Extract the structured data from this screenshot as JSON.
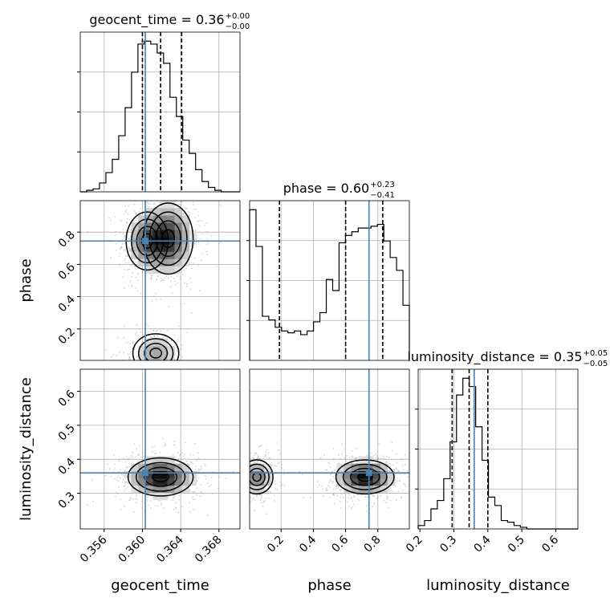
{
  "chart_data": {
    "type": "corner",
    "parameters": [
      "geocent_time",
      "phase",
      "luminosity_distance"
    ],
    "truths": {
      "geocent_time": 0.3603,
      "phase": 0.745,
      "luminosity_distance": 0.36
    },
    "titles": [
      {
        "param": "geocent_time",
        "text": "geocent_time = 0.36",
        "sup": "+0.00",
        "sub": "−0.00"
      },
      {
        "param": "phase",
        "text": "phase = 0.60",
        "sup": "+0.23",
        "sub": "−0.41"
      },
      {
        "param": "luminosity_distance",
        "text": "luminosity_distance = 0.35",
        "sup": "+0.05",
        "sub": "−0.05"
      }
    ],
    "ranges": {
      "geocent_time": [
        0.3535,
        0.3702
      ],
      "phase": [
        0.005,
        0.995
      ],
      "luminosity_distance": [
        0.195,
        0.665
      ]
    },
    "ticks": {
      "geocent_time": {
        "values": [
          0.356,
          0.36,
          0.364,
          0.368
        ],
        "labels": [
          "0.356",
          "0.360",
          "0.364",
          "0.368"
        ]
      },
      "phase_y": {
        "values": [
          0.2,
          0.4,
          0.6,
          0.8
        ],
        "labels": [
          "0.2",
          "0.4",
          "0.6",
          "0.8"
        ]
      },
      "phase_x": {
        "values": [
          0.2,
          0.4,
          0.6,
          0.8
        ],
        "labels": [
          "0.2",
          "0.4",
          "0.6",
          "0.8"
        ]
      },
      "luminosity_distance_y": {
        "values": [
          0.3,
          0.4,
          0.5,
          0.6
        ],
        "labels": [
          "0.3",
          "0.4",
          "0.5",
          "0.6"
        ]
      },
      "luminosity_distance_x": {
        "values": [
          0.2,
          0.3,
          0.4,
          0.5,
          0.6
        ],
        "labels": [
          "0.2",
          "0.3",
          "0.4",
          "0.5",
          "0.6"
        ]
      }
    },
    "quantiles": {
      "geocent_time": [
        0.36,
        0.3619,
        0.3641
      ],
      "phase": [
        0.19,
        0.6,
        0.83
      ],
      "luminosity_distance": [
        0.295,
        0.345,
        0.4
      ]
    },
    "histograms": {
      "geocent_time": {
        "edges": [
          0.3535,
          0.35417,
          0.35484,
          0.35551,
          0.35618,
          0.35685,
          0.35752,
          0.35819,
          0.35886,
          0.35953,
          0.3602,
          0.36087,
          0.36154,
          0.36221,
          0.36288,
          0.36355,
          0.36422,
          0.36489,
          0.36556,
          0.36623,
          0.3669,
          0.36757,
          0.36824,
          0.36891,
          0.36958,
          0.3702
        ],
        "counts": [
          0,
          1,
          2,
          6,
          13,
          22,
          38,
          57,
          81,
          100,
          102,
          100,
          94,
          87,
          64,
          51,
          35,
          26,
          15,
          7,
          3,
          1,
          0,
          0,
          0
        ]
      },
      "phase": {
        "edges": [
          0.005,
          0.0446,
          0.0842,
          0.1238,
          0.1634,
          0.203,
          0.2426,
          0.2822,
          0.3218,
          0.3614,
          0.401,
          0.4406,
          0.4802,
          0.5198,
          0.5594,
          0.599,
          0.6386,
          0.6782,
          0.7178,
          0.7574,
          0.797,
          0.8366,
          0.8762,
          0.9158,
          0.9554,
          0.995
        ],
        "counts": [
          82,
          62,
          24,
          22,
          18,
          16,
          15,
          16,
          14,
          16,
          21,
          26,
          44,
          38,
          64,
          68,
          70,
          72,
          72,
          73,
          74,
          65,
          56,
          49,
          30
        ]
      },
      "luminosity_distance": {
        "edges": [
          0.195,
          0.2138,
          0.2326,
          0.2514,
          0.2702,
          0.289,
          0.3078,
          0.3266,
          0.3454,
          0.3642,
          0.383,
          0.4018,
          0.4206,
          0.4394,
          0.4582,
          0.477,
          0.4958,
          0.5146,
          0.5334,
          0.5522,
          0.571,
          0.5898,
          0.6086,
          0.6274,
          0.6462,
          0.665
        ],
        "counts": [
          2,
          5,
          12,
          17,
          30,
          52,
          80,
          90,
          85,
          61,
          41,
          19,
          14,
          5,
          4,
          2,
          1,
          0,
          0,
          0,
          0,
          0,
          0,
          0,
          0
        ]
      }
    },
    "modes": [
      {
        "name": "geocent_time-phase",
        "x": [
          0.3605,
          0.3627,
          0.3614
        ],
        "y": [
          0.745,
          0.76,
          0.05
        ],
        "sx": [
          0.0011,
          0.0013,
          0.0012
        ],
        "sy": [
          0.09,
          0.11,
          0.06
        ],
        "w": [
          0.6,
          0.9,
          0.4
        ]
      },
      {
        "name": "geocent_time-luminosity_distance",
        "x": [
          0.3619
        ],
        "y": [
          0.348
        ],
        "sx": [
          0.0017
        ],
        "sy": [
          0.028
        ],
        "w": [
          1.0
        ]
      },
      {
        "name": "phase-luminosity_distance",
        "x": [
          0.72,
          0.05
        ],
        "y": [
          0.348,
          0.348
        ],
        "sx": [
          0.09,
          0.05
        ],
        "sy": [
          0.025,
          0.025
        ],
        "w": [
          1.0,
          0.55
        ]
      }
    ],
    "colors": {
      "truth": "#4682b4",
      "line": "#000000",
      "grid": "#b0b0b0",
      "scatter": "#9e9e9e"
    },
    "grid": true
  }
}
